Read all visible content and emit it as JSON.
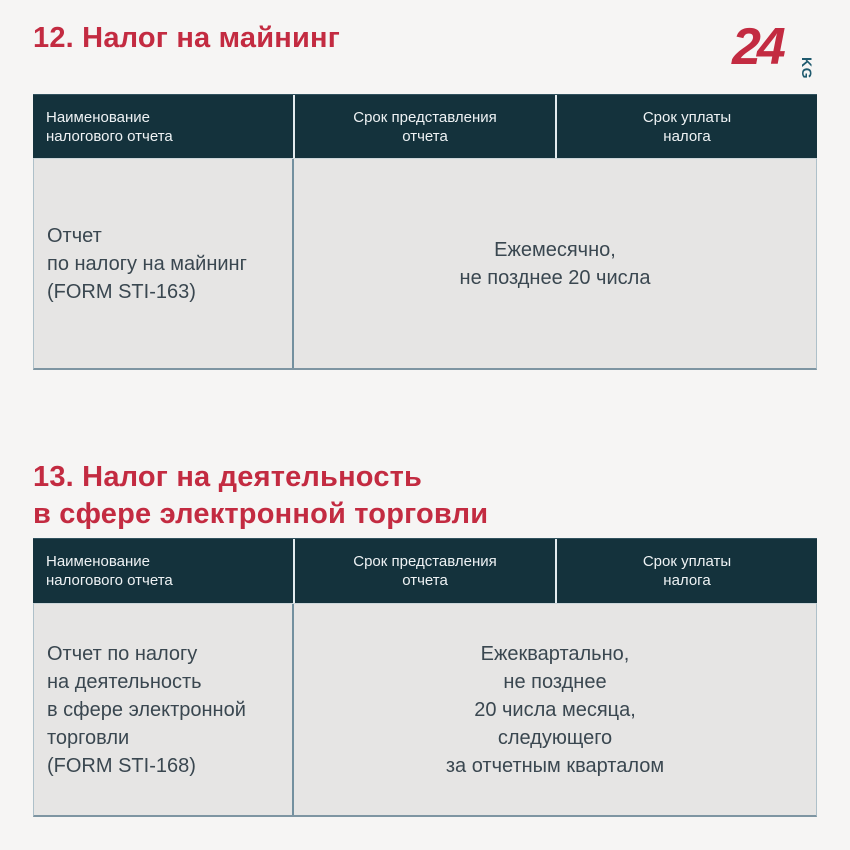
{
  "colors": {
    "background": "#f6f5f4",
    "title_red": "#c32b41",
    "header_teal": "#14323c",
    "cell_gray": "#e6e5e4",
    "body_text": "#3a4750",
    "border_bluegray": "#7e95a2",
    "logo_kg_teal": "#1f5a6e"
  },
  "logo": {
    "number": "24",
    "country_code": "KG"
  },
  "sections": [
    {
      "title": "12. Налог на майнинг",
      "table": {
        "col_headers": {
          "name": "Наименование\nналогового отчета",
          "submission": "Срок представления\nотчета",
          "payment": "Срок уплаты\nналога"
        },
        "row": {
          "report_name": "Отчет\nпо налогу на майнинг\n(FORM STI-163)",
          "deadline": "Ежемесячно,\nне позднее 20 числа"
        }
      }
    },
    {
      "title": "13. Налог на деятельность\nв сфере электронной торговли",
      "table": {
        "col_headers": {
          "name": "Наименование\nналогового отчета",
          "submission": "Срок представления\nотчета",
          "payment": "Срок уплаты\nналога"
        },
        "row": {
          "report_name": "Отчет по налогу\nна деятельность\nв сфере электронной\nторговли\n(FORM STI-168)",
          "deadline": "Ежеквартально,\nне позднее\n20 числа месяца,\nследующего\nза отчетным кварталом"
        }
      }
    }
  ]
}
